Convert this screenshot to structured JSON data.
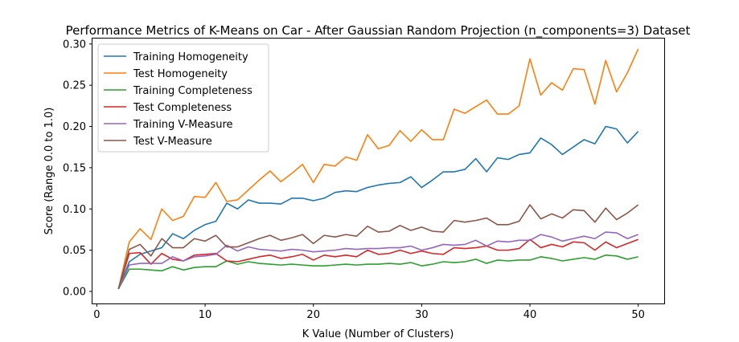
{
  "chart_data": {
    "type": "line",
    "title": "Performance Metrics of K-Means on Car - After Gaussian Random Projection (n_components=3) Dataset",
    "xlabel": "K Value (Number of Clusters)",
    "ylabel": "Score (Range 0.0 to 1.0)",
    "xlim": [
      -0.4,
      52.4
    ],
    "ylim": [
      -0.0146,
      0.3066
    ],
    "xticks": [
      0,
      10,
      20,
      30,
      40,
      50
    ],
    "yticks": [
      0.0,
      0.05,
      0.1,
      0.15,
      0.2,
      0.25,
      0.3
    ],
    "ytick_labels": [
      "0.00",
      "0.05",
      "0.10",
      "0.15",
      "0.20",
      "0.25",
      "0.30"
    ],
    "legend_position": "top-left",
    "grid": false,
    "x": [
      2,
      3,
      4,
      5,
      6,
      7,
      8,
      9,
      10,
      11,
      12,
      13,
      14,
      15,
      16,
      17,
      18,
      19,
      20,
      21,
      22,
      23,
      24,
      25,
      26,
      27,
      28,
      29,
      30,
      31,
      32,
      33,
      34,
      35,
      36,
      37,
      38,
      39,
      40,
      41,
      42,
      43,
      44,
      45,
      46,
      47,
      48,
      49,
      50
    ],
    "series": [
      {
        "name": "Training Homogeneity",
        "color": "#1f77b4",
        "values": [
          0.003,
          0.036,
          0.045,
          0.049,
          0.053,
          0.07,
          0.064,
          0.074,
          0.081,
          0.085,
          0.107,
          0.1,
          0.111,
          0.107,
          0.107,
          0.106,
          0.113,
          0.113,
          0.11,
          0.113,
          0.12,
          0.122,
          0.121,
          0.126,
          0.129,
          0.131,
          0.132,
          0.139,
          0.126,
          0.135,
          0.145,
          0.145,
          0.148,
          0.161,
          0.145,
          0.162,
          0.16,
          0.166,
          0.168,
          0.186,
          0.178,
          0.166,
          0.175,
          0.184,
          0.179,
          0.2,
          0.197,
          0.18,
          0.194
        ]
      },
      {
        "name": "Test Homogeneity",
        "color": "#ff7f0e",
        "values": [
          0.003,
          0.06,
          0.076,
          0.063,
          0.1,
          0.086,
          0.091,
          0.115,
          0.114,
          0.132,
          0.109,
          0.111,
          0.123,
          0.135,
          0.146,
          0.133,
          0.143,
          0.154,
          0.132,
          0.154,
          0.152,
          0.163,
          0.159,
          0.19,
          0.173,
          0.177,
          0.195,
          0.182,
          0.196,
          0.184,
          0.184,
          0.221,
          0.216,
          0.224,
          0.232,
          0.215,
          0.215,
          0.225,
          0.282,
          0.238,
          0.253,
          0.244,
          0.27,
          0.269,
          0.227,
          0.28,
          0.242,
          0.265,
          0.294
        ]
      },
      {
        "name": "Training Completeness",
        "color": "#2ca02c",
        "values": [
          0.003,
          0.027,
          0.027,
          0.026,
          0.025,
          0.03,
          0.026,
          0.029,
          0.03,
          0.03,
          0.037,
          0.033,
          0.036,
          0.034,
          0.033,
          0.032,
          0.033,
          0.032,
          0.031,
          0.031,
          0.032,
          0.033,
          0.032,
          0.033,
          0.033,
          0.034,
          0.033,
          0.035,
          0.031,
          0.033,
          0.036,
          0.035,
          0.036,
          0.039,
          0.034,
          0.038,
          0.037,
          0.038,
          0.038,
          0.042,
          0.04,
          0.037,
          0.039,
          0.041,
          0.039,
          0.044,
          0.043,
          0.039,
          0.042
        ]
      },
      {
        "name": "Test Completeness",
        "color": "#d62728",
        "values": [
          0.003,
          0.046,
          0.047,
          0.033,
          0.046,
          0.039,
          0.037,
          0.044,
          0.045,
          0.046,
          0.037,
          0.036,
          0.039,
          0.042,
          0.044,
          0.04,
          0.042,
          0.045,
          0.038,
          0.044,
          0.042,
          0.044,
          0.042,
          0.05,
          0.045,
          0.046,
          0.05,
          0.046,
          0.049,
          0.046,
          0.045,
          0.053,
          0.052,
          0.053,
          0.055,
          0.05,
          0.05,
          0.052,
          0.063,
          0.053,
          0.057,
          0.054,
          0.06,
          0.059,
          0.05,
          0.06,
          0.053,
          0.058,
          0.063
        ]
      },
      {
        "name": "Training V-Measure",
        "color": "#9467bd",
        "values": [
          0.003,
          0.032,
          0.034,
          0.034,
          0.034,
          0.042,
          0.037,
          0.042,
          0.043,
          0.045,
          0.056,
          0.049,
          0.054,
          0.051,
          0.05,
          0.049,
          0.051,
          0.05,
          0.048,
          0.049,
          0.05,
          0.052,
          0.051,
          0.052,
          0.052,
          0.053,
          0.053,
          0.055,
          0.05,
          0.053,
          0.057,
          0.056,
          0.057,
          0.062,
          0.055,
          0.061,
          0.06,
          0.062,
          0.062,
          0.069,
          0.066,
          0.061,
          0.064,
          0.067,
          0.064,
          0.072,
          0.071,
          0.064,
          0.069
        ]
      },
      {
        "name": "Test V-Measure",
        "color": "#8c564b",
        "values": [
          0.003,
          0.051,
          0.057,
          0.043,
          0.064,
          0.053,
          0.053,
          0.064,
          0.061,
          0.068,
          0.054,
          0.054,
          0.059,
          0.064,
          0.068,
          0.062,
          0.065,
          0.069,
          0.058,
          0.068,
          0.066,
          0.069,
          0.067,
          0.079,
          0.072,
          0.073,
          0.08,
          0.074,
          0.078,
          0.073,
          0.072,
          0.086,
          0.084,
          0.086,
          0.089,
          0.081,
          0.081,
          0.085,
          0.105,
          0.088,
          0.094,
          0.089,
          0.099,
          0.098,
          0.084,
          0.101,
          0.087,
          0.095,
          0.105
        ]
      }
    ]
  }
}
